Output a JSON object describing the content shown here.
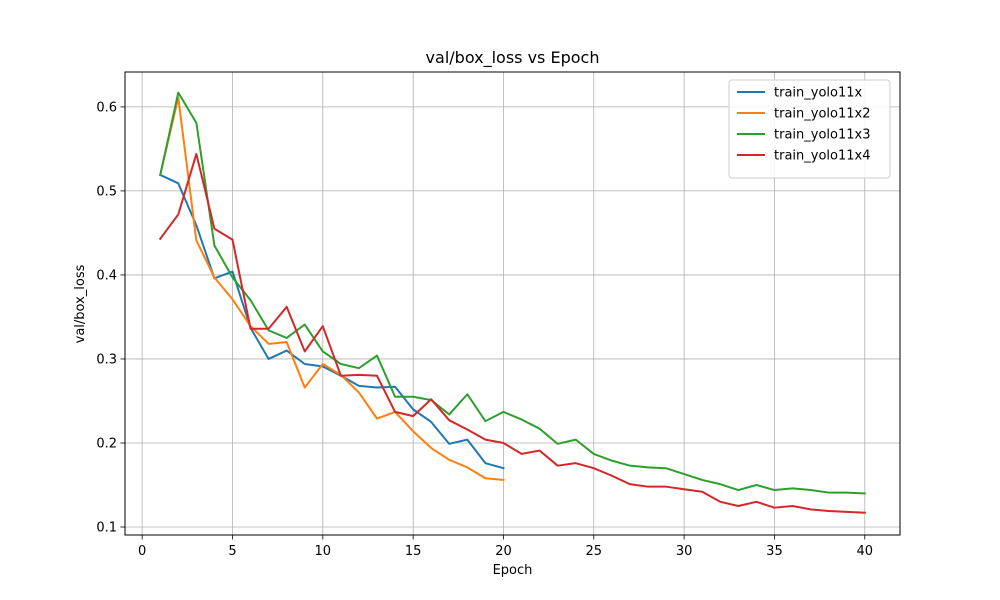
{
  "chart_data": {
    "type": "line",
    "title": "val/box_loss vs Epoch",
    "xlabel": "Epoch",
    "ylabel": "val/box_loss",
    "xlim": [
      -0.95,
      41.95
    ],
    "ylim": [
      0.0905,
      0.6415
    ],
    "xticks": [
      0,
      5,
      10,
      15,
      20,
      25,
      30,
      35,
      40
    ],
    "yticks": [
      0.1,
      0.2,
      0.3,
      0.4,
      0.5,
      0.6
    ],
    "grid": true,
    "legend_position": "top-right",
    "series": [
      {
        "name": "train_yolo11x",
        "color": "#1f77b4",
        "x": [
          1,
          2,
          3,
          4,
          5,
          6,
          7,
          8,
          9,
          10,
          11,
          12,
          13,
          14,
          15,
          16,
          17,
          18,
          19,
          20
        ],
        "y": [
          0.519,
          0.509,
          0.459,
          0.396,
          0.404,
          0.337,
          0.3,
          0.31,
          0.294,
          0.291,
          0.28,
          0.268,
          0.266,
          0.267,
          0.24,
          0.225,
          0.199,
          0.204,
          0.176,
          0.17
        ]
      },
      {
        "name": "train_yolo11x2",
        "color": "#ff7f0e",
        "x": [
          1,
          2,
          3,
          4,
          5,
          6,
          7,
          8,
          9,
          10,
          11,
          12,
          13,
          14,
          15,
          16,
          17,
          18,
          19,
          20
        ],
        "y": [
          0.519,
          0.611,
          0.441,
          0.397,
          0.371,
          0.339,
          0.318,
          0.32,
          0.266,
          0.294,
          0.281,
          0.26,
          0.229,
          0.237,
          0.214,
          0.194,
          0.18,
          0.171,
          0.158,
          0.156
        ]
      },
      {
        "name": "train_yolo11x3",
        "color": "#2ca02c",
        "x": [
          1,
          2,
          3,
          4,
          5,
          6,
          7,
          8,
          9,
          10,
          11,
          12,
          13,
          14,
          15,
          16,
          17,
          18,
          19,
          20,
          21,
          22,
          23,
          24,
          25,
          26,
          27,
          28,
          29,
          30,
          31,
          32,
          33,
          34,
          35,
          36,
          37,
          38,
          39,
          40
        ],
        "y": [
          0.519,
          0.617,
          0.581,
          0.435,
          0.397,
          0.37,
          0.334,
          0.325,
          0.341,
          0.309,
          0.294,
          0.289,
          0.304,
          0.255,
          0.255,
          0.251,
          0.234,
          0.258,
          0.226,
          0.237,
          0.228,
          0.217,
          0.199,
          0.204,
          0.187,
          0.179,
          0.173,
          0.171,
          0.17,
          0.163,
          0.156,
          0.151,
          0.144,
          0.15,
          0.144,
          0.146,
          0.144,
          0.141,
          0.141,
          0.14
        ]
      },
      {
        "name": "train_yolo11x4",
        "color": "#d62728",
        "x": [
          1,
          2,
          3,
          4,
          5,
          6,
          7,
          8,
          9,
          10,
          11,
          12,
          13,
          14,
          15,
          16,
          17,
          18,
          19,
          20,
          21,
          22,
          23,
          24,
          25,
          26,
          27,
          28,
          29,
          30,
          31,
          32,
          33,
          34,
          35,
          36,
          37,
          38,
          39,
          40
        ],
        "y": [
          0.443,
          0.472,
          0.544,
          0.455,
          0.442,
          0.336,
          0.336,
          0.362,
          0.309,
          0.339,
          0.28,
          0.281,
          0.28,
          0.237,
          0.232,
          0.252,
          0.227,
          0.216,
          0.204,
          0.2,
          0.187,
          0.191,
          0.173,
          0.176,
          0.17,
          0.161,
          0.151,
          0.148,
          0.148,
          0.145,
          0.142,
          0.13,
          0.125,
          0.13,
          0.123,
          0.125,
          0.121,
          0.119,
          0.118,
          0.117
        ]
      }
    ]
  }
}
